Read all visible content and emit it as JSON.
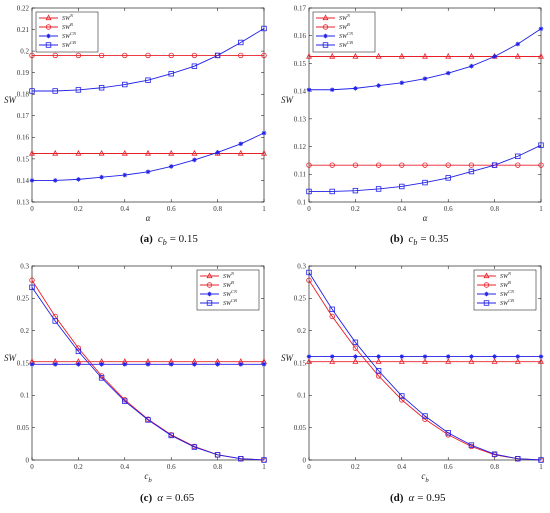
{
  "legend_labels": [
    "SW^N",
    "SW^B",
    "SW^CN",
    "SW^CB"
  ],
  "colors": {
    "red": "#e8202a",
    "blue": "#2020e8"
  },
  "chart_data": [
    {
      "type": "line",
      "caption_letter": "(a)",
      "caption_var": "c",
      "caption_sub": "b",
      "caption_value": "= 0.15",
      "xlabel": "α",
      "ylabel": "SW",
      "xlim": [
        0,
        1
      ],
      "ylim": [
        0.13,
        0.22
      ],
      "xticks": [
        0,
        0.2,
        0.4,
        0.6,
        0.8,
        1
      ],
      "xtick_labels": [
        "0",
        "0.2",
        "0.4",
        "0.6",
        "0.8",
        "1"
      ],
      "yticks": [
        0.13,
        0.14,
        0.15,
        0.16,
        0.17,
        0.18,
        0.19,
        0.2,
        0.21,
        0.22
      ],
      "ytick_labels": [
        "0.13",
        "0.14",
        "0.15",
        "0.16",
        "0.17",
        "0.18",
        "0.19",
        "0.2",
        "0.21",
        "0.22"
      ],
      "legend": "top-left",
      "grid": false,
      "x": [
        0,
        0.1,
        0.2,
        0.3,
        0.4,
        0.5,
        0.6,
        0.7,
        0.8,
        0.9,
        1
      ],
      "series": [
        {
          "name": "SW^N",
          "marker": "triangle",
          "color": "red",
          "values": [
            0.1525,
            0.1525,
            0.1525,
            0.1525,
            0.1525,
            0.1525,
            0.1525,
            0.1525,
            0.1525,
            0.1525,
            0.1525
          ]
        },
        {
          "name": "SW^B",
          "marker": "circle",
          "color": "red",
          "values": [
            0.198,
            0.198,
            0.198,
            0.198,
            0.198,
            0.198,
            0.198,
            0.198,
            0.198,
            0.198,
            0.198
          ]
        },
        {
          "name": "SW^CN",
          "marker": "star",
          "color": "blue",
          "values": [
            0.14,
            0.14,
            0.1405,
            0.1415,
            0.1425,
            0.144,
            0.1465,
            0.1495,
            0.153,
            0.157,
            0.162
          ]
        },
        {
          "name": "SW^CB",
          "marker": "square",
          "color": "blue",
          "values": [
            0.1815,
            0.1815,
            0.182,
            0.183,
            0.1845,
            0.1865,
            0.1895,
            0.193,
            0.198,
            0.204,
            0.2105
          ]
        }
      ]
    },
    {
      "type": "line",
      "caption_letter": "(b)",
      "caption_var": "c",
      "caption_sub": "b",
      "caption_value": "= 0.35",
      "xlabel": "α",
      "ylabel": "SW",
      "xlim": [
        0,
        1
      ],
      "ylim": [
        0.1,
        0.17
      ],
      "xticks": [
        0,
        0.2,
        0.4,
        0.6,
        0.8,
        1
      ],
      "xtick_labels": [
        "0",
        "0.2",
        "0.4",
        "0.6",
        "0.8",
        "1"
      ],
      "yticks": [
        0.1,
        0.11,
        0.12,
        0.13,
        0.14,
        0.15,
        0.16,
        0.17
      ],
      "ytick_labels": [
        "0.1",
        "0.11",
        "0.12",
        "0.13",
        "0.14",
        "0.15",
        "0.16",
        "0.17"
      ],
      "legend": "top-left",
      "grid": false,
      "x": [
        0,
        0.1,
        0.2,
        0.3,
        0.4,
        0.5,
        0.6,
        0.7,
        0.8,
        0.9,
        1
      ],
      "series": [
        {
          "name": "SW^N",
          "marker": "triangle",
          "color": "red",
          "values": [
            0.1525,
            0.1525,
            0.1525,
            0.1525,
            0.1525,
            0.1525,
            0.1525,
            0.1525,
            0.1525,
            0.1525,
            0.1525
          ]
        },
        {
          "name": "SW^B",
          "marker": "circle",
          "color": "red",
          "values": [
            0.1133,
            0.1133,
            0.1133,
            0.1133,
            0.1133,
            0.1133,
            0.1133,
            0.1133,
            0.1133,
            0.1133,
            0.1133
          ]
        },
        {
          "name": "SW^CN",
          "marker": "star",
          "color": "blue",
          "values": [
            0.1405,
            0.1405,
            0.141,
            0.142,
            0.143,
            0.1445,
            0.1465,
            0.149,
            0.1525,
            0.157,
            0.1625
          ]
        },
        {
          "name": "SW^CB",
          "marker": "square",
          "color": "blue",
          "values": [
            0.1038,
            0.1038,
            0.1041,
            0.1047,
            0.1056,
            0.107,
            0.1087,
            0.111,
            0.1133,
            0.1165,
            0.1205
          ]
        }
      ]
    },
    {
      "type": "line",
      "caption_letter": "(c)",
      "caption_var": "α",
      "caption_sub": "",
      "caption_value": "= 0.65",
      "xlabel": "c_b",
      "ylabel": "SW",
      "xlim": [
        0,
        1
      ],
      "ylim": [
        0,
        0.3
      ],
      "xticks": [
        0,
        0.2,
        0.4,
        0.6,
        0.8,
        1
      ],
      "xtick_labels": [
        "0",
        "0.2",
        "0.4",
        "0.6",
        "0.8",
        "1"
      ],
      "yticks": [
        0,
        0.05,
        0.1,
        0.15,
        0.2,
        0.25,
        0.3
      ],
      "ytick_labels": [
        "0",
        "0.05",
        "0.1",
        "0.15",
        "0.2",
        "0.25",
        "0.3"
      ],
      "legend": "top-right",
      "grid": false,
      "x": [
        0,
        0.1,
        0.2,
        0.3,
        0.4,
        0.5,
        0.6,
        0.7,
        0.8,
        0.9,
        1
      ],
      "series": [
        {
          "name": "SW^N",
          "marker": "triangle",
          "color": "red",
          "values": [
            0.152,
            0.152,
            0.152,
            0.152,
            0.152,
            0.152,
            0.152,
            0.152,
            0.152,
            0.152,
            0.152
          ]
        },
        {
          "name": "SW^B",
          "marker": "circle",
          "color": "red",
          "values": [
            0.278,
            0.222,
            0.173,
            0.13,
            0.093,
            0.063,
            0.039,
            0.021,
            0.008,
            0.002,
            0.0
          ]
        },
        {
          "name": "SW^CN",
          "marker": "star",
          "color": "blue",
          "values": [
            0.148,
            0.148,
            0.148,
            0.148,
            0.148,
            0.148,
            0.148,
            0.148,
            0.148,
            0.148,
            0.148
          ]
        },
        {
          "name": "SW^CB",
          "marker": "square",
          "color": "blue",
          "values": [
            0.267,
            0.215,
            0.168,
            0.127,
            0.091,
            0.062,
            0.038,
            0.02,
            0.008,
            0.002,
            0.0
          ]
        }
      ]
    },
    {
      "type": "line",
      "caption_letter": "(d)",
      "caption_var": "α",
      "caption_sub": "",
      "caption_value": "= 0.95",
      "xlabel": "c_b",
      "ylabel": "SW",
      "xlim": [
        0,
        1
      ],
      "ylim": [
        0,
        0.3
      ],
      "xticks": [
        0,
        0.2,
        0.4,
        0.6,
        0.8,
        1
      ],
      "xtick_labels": [
        "0",
        "0.2",
        "0.4",
        "0.6",
        "0.8",
        "1"
      ],
      "yticks": [
        0,
        0.05,
        0.1,
        0.15,
        0.2,
        0.25,
        0.3
      ],
      "ytick_labels": [
        "0",
        "0.05",
        "0.1",
        "0.15",
        "0.2",
        "0.25",
        "0.3"
      ],
      "legend": "top-right",
      "grid": false,
      "x": [
        0,
        0.1,
        0.2,
        0.3,
        0.4,
        0.5,
        0.6,
        0.7,
        0.8,
        0.9,
        1
      ],
      "series": [
        {
          "name": "SW^N",
          "marker": "triangle",
          "color": "red",
          "values": [
            0.152,
            0.152,
            0.152,
            0.152,
            0.152,
            0.152,
            0.152,
            0.152,
            0.152,
            0.152,
            0.152
          ]
        },
        {
          "name": "SW^B",
          "marker": "circle",
          "color": "red",
          "values": [
            0.278,
            0.222,
            0.173,
            0.13,
            0.093,
            0.063,
            0.039,
            0.021,
            0.008,
            0.002,
            0.0
          ]
        },
        {
          "name": "SW^CN",
          "marker": "star",
          "color": "blue",
          "values": [
            0.16,
            0.16,
            0.16,
            0.16,
            0.16,
            0.16,
            0.16,
            0.16,
            0.16,
            0.16,
            0.16
          ]
        },
        {
          "name": "SW^CB",
          "marker": "square",
          "color": "blue",
          "values": [
            0.29,
            0.233,
            0.182,
            0.138,
            0.099,
            0.068,
            0.042,
            0.023,
            0.009,
            0.002,
            0.0
          ]
        }
      ]
    }
  ]
}
